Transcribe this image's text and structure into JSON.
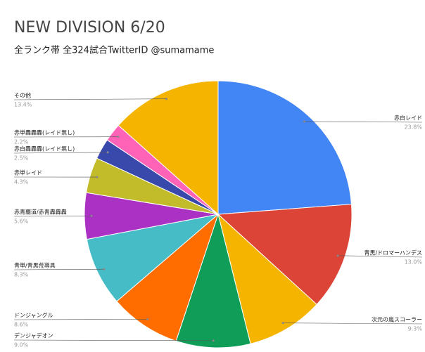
{
  "chart_data": {
    "type": "pie",
    "title": "NEW DIVISION 6/20",
    "subtitle": "全ランク帯 全324試合TwitterID @sumamame",
    "categories": [
      "赤白レイド",
      "青黒/ドロマーハンデス",
      "次元の嵐スコーラー",
      "デンジャデオン",
      "ドンジャングル",
      "青単/青黒荒導具",
      "赤青覇道/赤青轟轟轟",
      "赤単レイド",
      "赤白轟轟轟(レイド無し)",
      "赤単轟轟轟(レイド無し)",
      "その他"
    ],
    "values": [
      23.8,
      13.0,
      9.3,
      9.0,
      8.6,
      8.3,
      5.6,
      4.3,
      2.5,
      2.2,
      13.4
    ],
    "value_labels": [
      "23.8%",
      "13.0%",
      "9.3%",
      "9.0%",
      "8.6%",
      "8.3%",
      "5.6%",
      "4.3%",
      "2.5%",
      "2.2%",
      "13.4%"
    ],
    "colors": [
      "#4285f4",
      "#db4437",
      "#f4b400",
      "#0f9d58",
      "#ff6d00",
      "#46bdc6",
      "#ab30c4",
      "#c2bb2a",
      "#3949ab",
      "#ff63b8",
      "#f4b400"
    ]
  }
}
